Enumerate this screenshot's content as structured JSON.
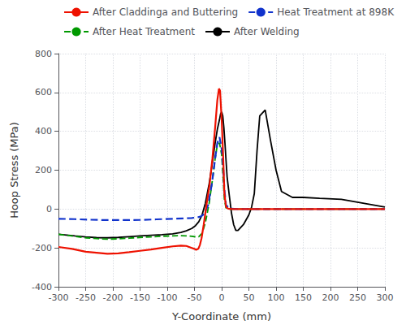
{
  "chart_data": {
    "type": "line",
    "xlabel": "Y-Coordinate (mm)",
    "ylabel": "Hoop Stress (MPa)",
    "xlim": [
      -300,
      300
    ],
    "ylim": [
      -400,
      800
    ],
    "xticks": [
      -300,
      -250,
      -200,
      -150,
      -100,
      -50,
      0,
      50,
      100,
      150,
      200,
      250,
      300
    ],
    "yticks": [
      -400,
      -200,
      0,
      200,
      400,
      600,
      800
    ],
    "grid": true,
    "legend": "upper right",
    "series": [
      {
        "name": "After Claddinga and Buttering",
        "color": "#EE1100",
        "line_style": "solid",
        "x": [
          -300,
          -275,
          -250,
          -230,
          -210,
          -190,
          -170,
          -150,
          -130,
          -110,
          -90,
          -75,
          -65,
          -55,
          -50,
          -47,
          -43,
          -40,
          -37,
          -33,
          -28,
          -22,
          -17,
          -12,
          -8,
          -5,
          -3,
          0,
          3,
          5,
          8,
          12,
          20,
          40,
          80,
          150,
          300
        ],
        "values": [
          -195,
          -205,
          -220,
          -225,
          -230,
          -228,
          -222,
          -215,
          -208,
          -200,
          -192,
          -188,
          -190,
          -200,
          -205,
          -210,
          -205,
          -185,
          -150,
          -80,
          20,
          130,
          260,
          420,
          560,
          620,
          610,
          460,
          250,
          80,
          10,
          2,
          0,
          0,
          0,
          0,
          0
        ]
      },
      {
        "name": "Heat Treatment at 898K",
        "color": "#1133CC",
        "line_style": "dashed",
        "x": [
          -300,
          -270,
          -240,
          -210,
          -180,
          -150,
          -120,
          -90,
          -70,
          -55,
          -45,
          -38,
          -32,
          -25,
          -18,
          -12,
          -8,
          -4,
          0,
          3,
          5,
          8,
          15,
          30,
          60,
          150,
          300
        ],
        "values": [
          -50,
          -52,
          -55,
          -57,
          -57,
          -56,
          -53,
          -50,
          -48,
          -46,
          -43,
          -38,
          -25,
          20,
          130,
          260,
          340,
          370,
          310,
          200,
          100,
          20,
          2,
          0,
          0,
          0,
          0
        ]
      },
      {
        "name": "After Heat Treatment",
        "color": "#009900",
        "line_style": "dashed",
        "x": [
          -300,
          -270,
          -250,
          -230,
          -210,
          -190,
          -170,
          -150,
          -130,
          -110,
          -90,
          -75,
          -65,
          -55,
          -48,
          -42,
          -36,
          -30,
          -23,
          -17,
          -12,
          -8,
          -4,
          0,
          3,
          5,
          8,
          15,
          30,
          60,
          150,
          300
        ],
        "values": [
          -130,
          -140,
          -148,
          -152,
          -155,
          -153,
          -150,
          -146,
          -143,
          -140,
          -138,
          -137,
          -138,
          -140,
          -143,
          -142,
          -125,
          -70,
          30,
          150,
          260,
          330,
          340,
          280,
          150,
          50,
          5,
          0,
          0,
          0,
          0,
          0
        ]
      },
      {
        "name": "After Welding",
        "color": "#000000",
        "line_style": "solid",
        "x": [
          -300,
          -270,
          -250,
          -230,
          -210,
          -190,
          -170,
          -150,
          -130,
          -110,
          -90,
          -75,
          -65,
          -55,
          -48,
          -42,
          -36,
          -30,
          -23,
          -17,
          -12,
          -8,
          -4,
          -2,
          0,
          2,
          4,
          6,
          8,
          10,
          14,
          18,
          22,
          26,
          30,
          40,
          50,
          55,
          60,
          65,
          70,
          80,
          90,
          100,
          110,
          130,
          150,
          180,
          220,
          260,
          300
        ],
        "values": [
          -130,
          -138,
          -143,
          -147,
          -148,
          -146,
          -142,
          -138,
          -135,
          -132,
          -128,
          -120,
          -112,
          -100,
          -85,
          -65,
          -30,
          30,
          130,
          240,
          340,
          410,
          460,
          490,
          500,
          480,
          420,
          340,
          250,
          165,
          70,
          -20,
          -80,
          -110,
          -110,
          -80,
          -30,
          10,
          80,
          300,
          480,
          510,
          350,
          200,
          90,
          60,
          60,
          55,
          50,
          30,
          10
        ]
      }
    ]
  }
}
